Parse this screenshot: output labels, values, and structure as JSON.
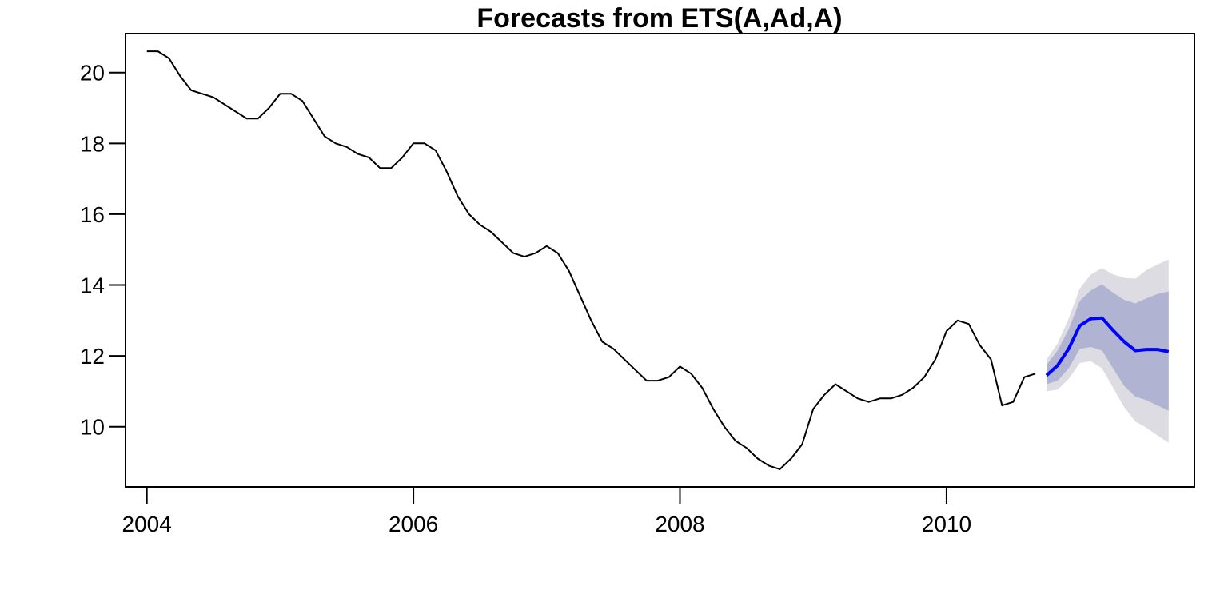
{
  "chart_data": {
    "type": "line",
    "title": "Forecasts from ETS(A,Ad,A)",
    "xlabel": "",
    "ylabel": "",
    "xlim": [
      2003.84,
      2011.86
    ],
    "ylim": [
      8.3,
      21.1
    ],
    "x_ticks": [
      2004,
      2006,
      2008,
      2010
    ],
    "x_tick_labels": [
      "2004",
      "2006",
      "2008",
      "2010"
    ],
    "y_ticks": [
      10,
      12,
      14,
      16,
      18,
      20
    ],
    "y_tick_labels": [
      "10",
      "12",
      "14",
      "16",
      "18",
      "20"
    ],
    "grid": false,
    "legend": "none",
    "colors": {
      "history": "#000000",
      "forecast": "#0000ff",
      "band80": "#b0b4d2",
      "band95": "#dcdce2"
    },
    "history": {
      "start": 2004.0,
      "step": 0.08333333,
      "values": [
        20.6,
        20.6,
        20.4,
        19.9,
        19.5,
        19.4,
        19.3,
        19.1,
        18.9,
        18.7,
        18.7,
        19.0,
        19.4,
        19.4,
        19.2,
        18.7,
        18.2,
        18.0,
        17.9,
        17.7,
        17.6,
        17.3,
        17.3,
        17.6,
        18.0,
        18.0,
        17.8,
        17.2,
        16.5,
        16.0,
        15.7,
        15.5,
        15.2,
        14.9,
        14.8,
        14.9,
        15.1,
        14.9,
        14.4,
        13.7,
        13.0,
        12.4,
        12.2,
        11.9,
        11.6,
        11.3,
        11.3,
        11.4,
        11.7,
        11.5,
        11.1,
        10.5,
        10.0,
        9.6,
        9.4,
        9.1,
        8.9,
        8.8,
        9.1,
        9.5,
        10.5,
        10.9,
        11.2,
        11.0,
        10.8,
        10.7,
        10.8,
        10.8,
        10.9,
        11.1,
        11.4,
        11.9,
        12.7,
        13.0,
        12.9,
        12.3,
        11.9,
        10.6,
        10.7,
        11.4,
        11.5
      ]
    },
    "forecast": {
      "start": 2010.75,
      "step": 0.08333333,
      "mean": [
        11.45,
        11.73,
        12.2,
        12.85,
        13.05,
        13.07,
        12.72,
        12.4,
        12.15,
        12.18,
        12.18,
        12.12
      ],
      "lo80": [
        11.2,
        11.3,
        11.65,
        12.2,
        12.25,
        12.15,
        11.65,
        11.15,
        10.85,
        10.75,
        10.6,
        10.45
      ],
      "hi80": [
        11.75,
        12.15,
        12.75,
        13.55,
        13.85,
        14.02,
        13.78,
        13.58,
        13.48,
        13.62,
        13.75,
        13.82
      ],
      "lo95": [
        11.0,
        11.05,
        11.35,
        11.8,
        11.85,
        11.65,
        11.1,
        10.55,
        10.15,
        9.97,
        9.75,
        9.55
      ],
      "hi95": [
        11.9,
        12.35,
        13.05,
        13.9,
        14.3,
        14.48,
        14.3,
        14.2,
        14.18,
        14.42,
        14.58,
        14.72
      ]
    }
  }
}
